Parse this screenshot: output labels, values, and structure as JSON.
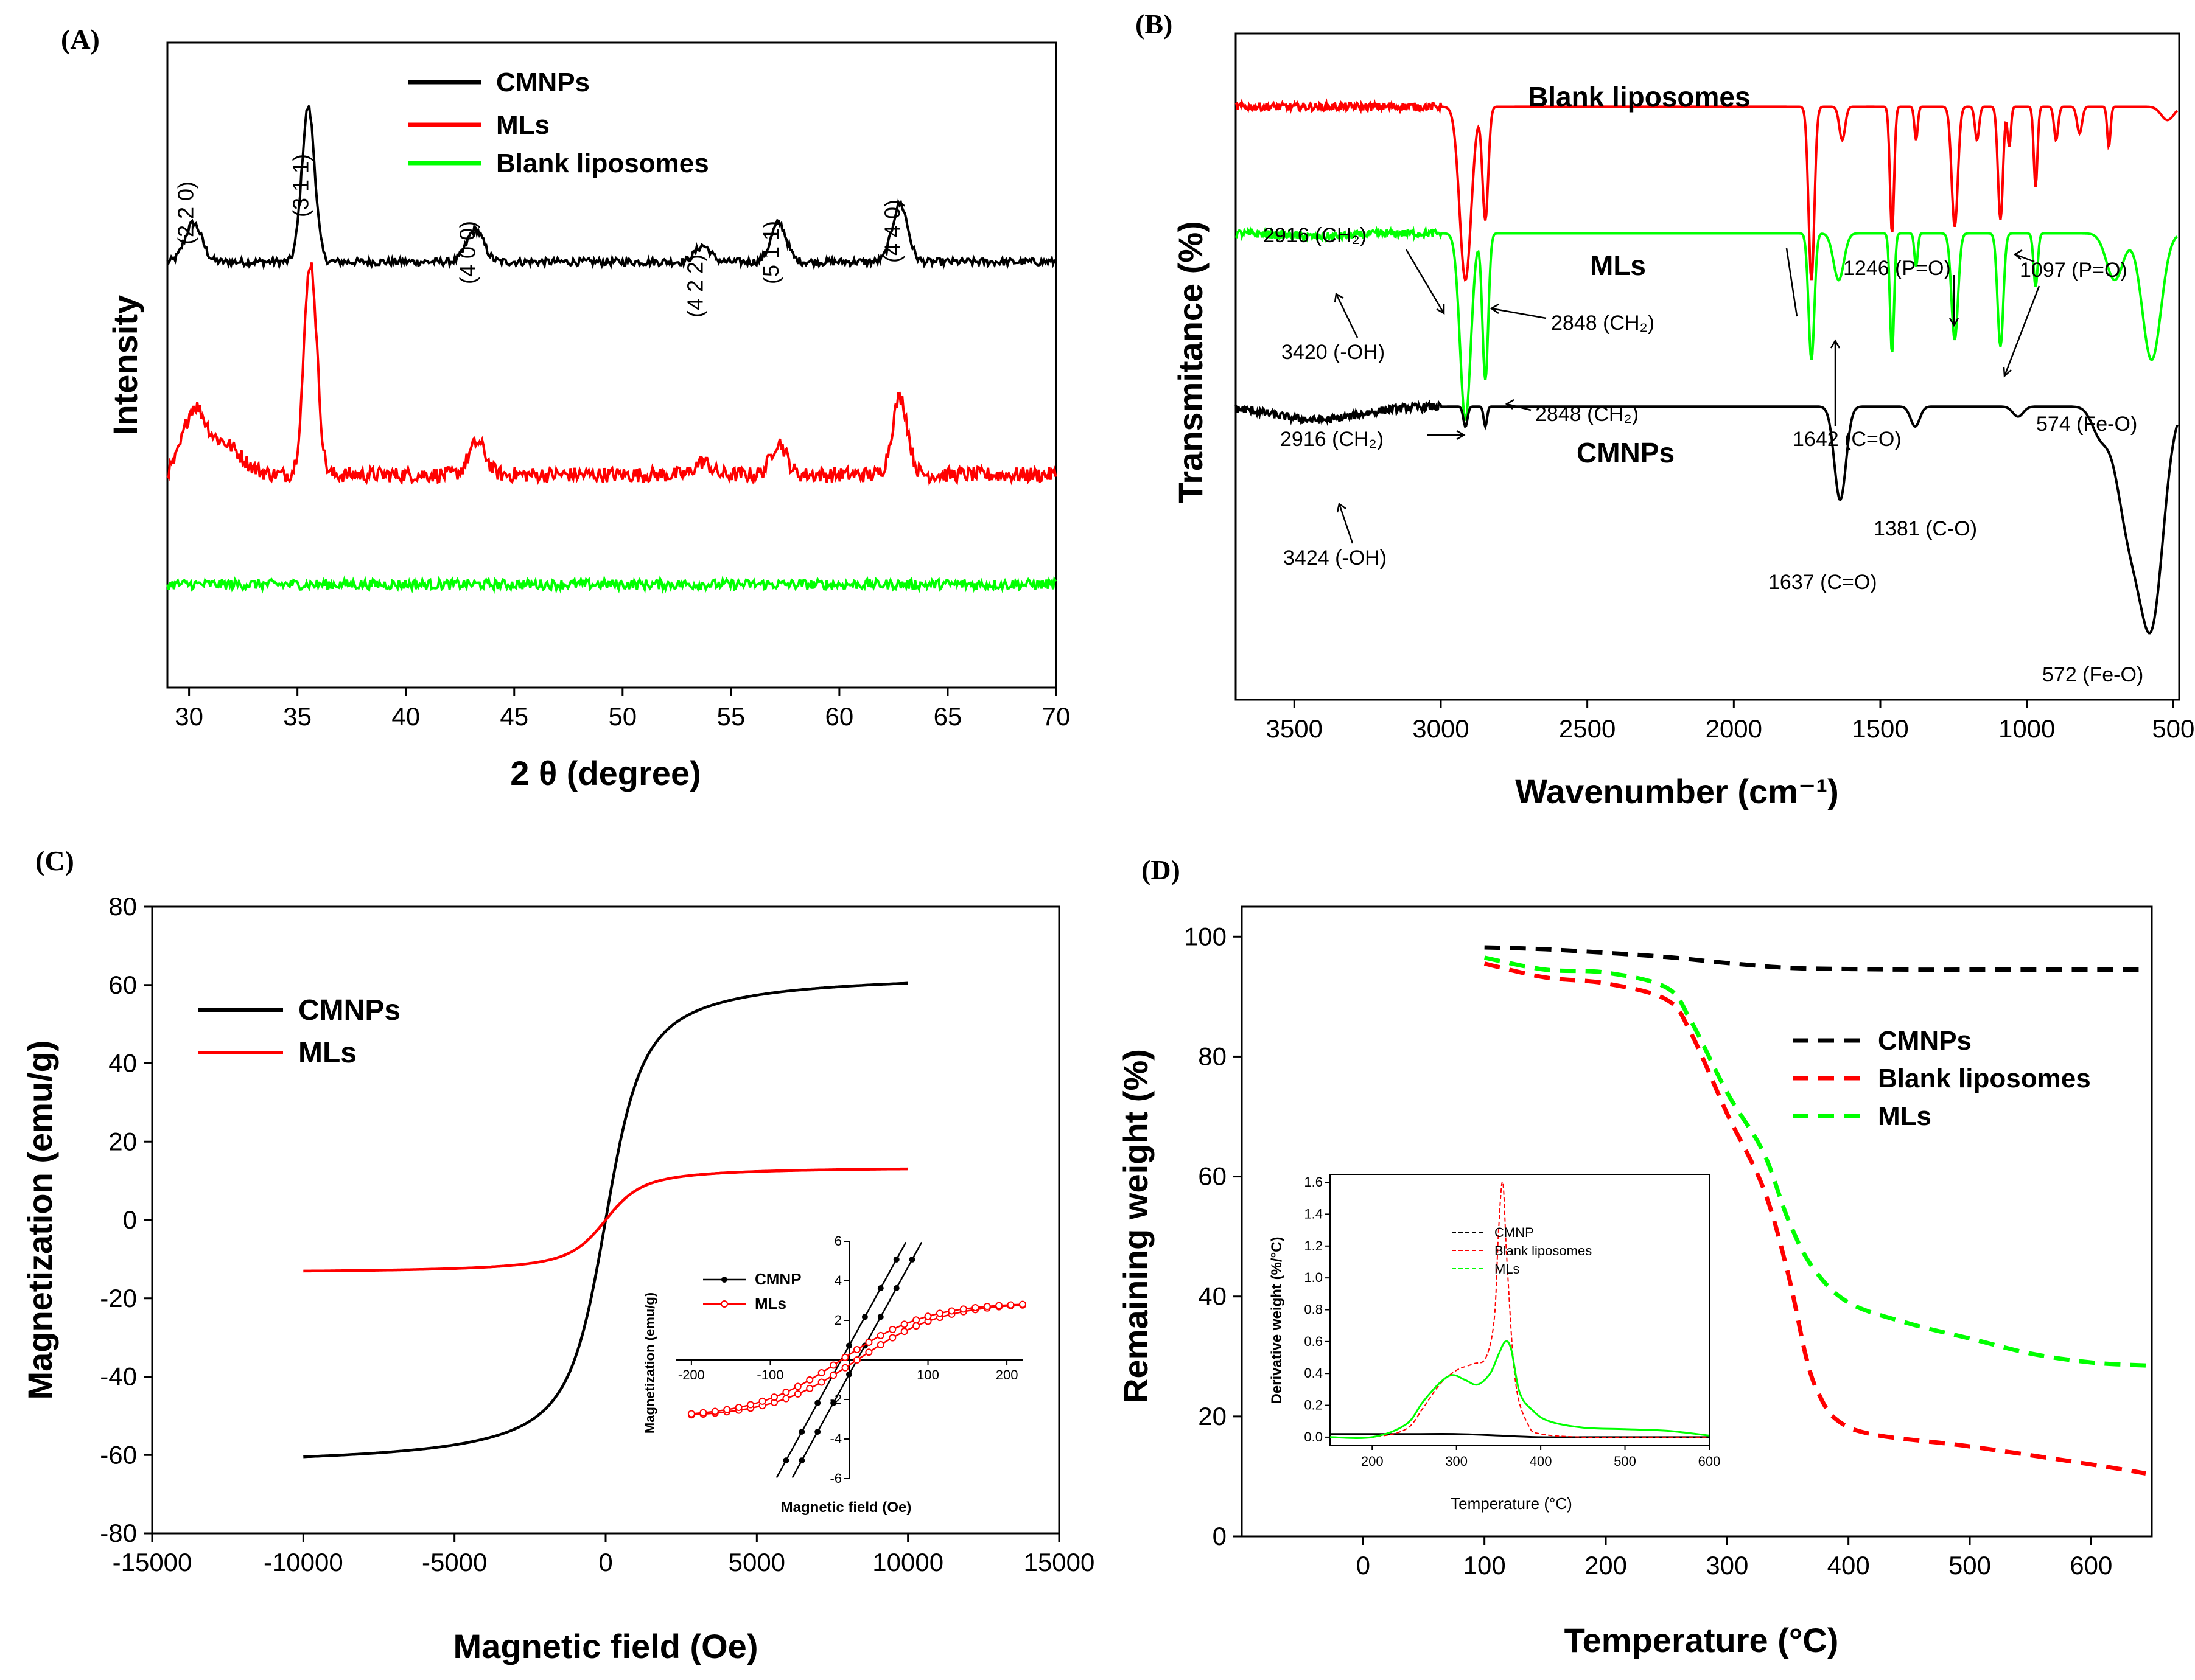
{
  "figure": {
    "description_free": true
  },
  "chart_data": [
    {
      "panel": "(A)",
      "type": "line",
      "title": "",
      "xlabel": "2 θ (degree)",
      "ylabel": "Intensity",
      "xlim": [
        29,
        70
      ],
      "xticks": [
        "30",
        "35",
        "40",
        "45",
        "50",
        "55",
        "60",
        "65",
        "70"
      ],
      "legend": [
        "CMNPs",
        "MLs",
        "Blank liposomes"
      ],
      "peak_labels": [
        {
          "text": "(2 2 0)",
          "x": 30.2
        },
        {
          "text": "(3 1 1)",
          "x": 35.5
        },
        {
          "text": "(4 0 0)",
          "x": 43.2
        },
        {
          "text": "(4 2 2)",
          "x": 53.7
        },
        {
          "text": "(5 1 1)",
          "x": 57.2
        },
        {
          "text": "(4 4 0)",
          "x": 62.8
        }
      ],
      "series": [
        {
          "name": "CMNPs",
          "color": "#000000",
          "baseline": 0.66,
          "noise": 0.006,
          "peaks": [
            [
              30.2,
              0.06,
              0.55
            ],
            [
              35.5,
              0.24,
              0.42
            ],
            [
              43.2,
              0.05,
              0.55
            ],
            [
              53.7,
              0.025,
              0.5
            ],
            [
              57.2,
              0.06,
              0.5
            ],
            [
              62.8,
              0.09,
              0.5
            ]
          ]
        },
        {
          "name": "MLs",
          "color": "#ff0000",
          "baseline": 0.33,
          "noise": 0.012,
          "peaks": [
            [
              30.2,
              0.09,
              0.7
            ],
            [
              31.5,
              0.05,
              1.2
            ],
            [
              35.6,
              0.33,
              0.42
            ],
            [
              43.3,
              0.05,
              0.55
            ],
            [
              53.7,
              0.02,
              0.5
            ],
            [
              57.2,
              0.05,
              0.5
            ],
            [
              62.8,
              0.12,
              0.5
            ]
          ]
        },
        {
          "name": "Blank liposomes",
          "color": "#00ff00",
          "baseline": 0.16,
          "noise": 0.008,
          "peaks": []
        }
      ]
    },
    {
      "panel": "(B)",
      "type": "line",
      "title": "",
      "xlabel": "Wavenumber (cm⁻¹)",
      "ylabel": "Transmitance (%)",
      "xlim": [
        3700,
        480
      ],
      "xticks": [
        "3500",
        "3000",
        "2500",
        "2000",
        "1500",
        "1000",
        "500"
      ],
      "series_labels": [
        "Blank liposomes",
        "MLs",
        "CMNPs"
      ],
      "annotations": [
        "2916 (CH₂)",
        "2848 (CH₂)",
        "3420 (-OH)",
        "2848 (CH₂)",
        "2916 (CH₂)",
        "1246 (P=O)",
        "1097 (P=O)",
        "1642 (C=O)",
        "574 (Fe-O)",
        "3424 (-OH)",
        "1637 (C=O)",
        "1381 (C-O)",
        "572 (Fe-O)"
      ],
      "series": [
        {
          "name": "Blank liposomes",
          "color": "#ff0000",
          "baseline": 0.89,
          "bands": [
            [
              2916,
              0.26,
              28
            ],
            [
              2848,
              0.17,
              14
            ],
            [
              1735,
              0.26,
              14
            ],
            [
              1630,
              0.05,
              14
            ],
            [
              1460,
              0.19,
              10
            ],
            [
              1378,
              0.05,
              8
            ],
            [
              1246,
              0.18,
              15
            ],
            [
              1170,
              0.05,
              10
            ],
            [
              1090,
              0.17,
              12
            ],
            [
              1060,
              0.06,
              8
            ],
            [
              970,
              0.12,
              9
            ],
            [
              900,
              0.05,
              10
            ],
            [
              820,
              0.04,
              12
            ],
            [
              720,
              0.06,
              8
            ],
            [
              520,
              0.02,
              30
            ]
          ]
        },
        {
          "name": "MLs",
          "color": "#00ff00",
          "baseline": 0.7,
          "bands": [
            [
              3420,
              0.005,
              150
            ],
            [
              2916,
              0.28,
              26
            ],
            [
              2848,
              0.22,
              14
            ],
            [
              1735,
              0.19,
              14
            ],
            [
              1642,
              0.07,
              25
            ],
            [
              1460,
              0.18,
              10
            ],
            [
              1378,
              0.05,
              8
            ],
            [
              1246,
              0.16,
              16
            ],
            [
              1090,
              0.17,
              14
            ],
            [
              970,
              0.08,
              10
            ],
            [
              574,
              0.19,
              45
            ],
            [
              700,
              0.07,
              40
            ]
          ]
        },
        {
          "name": "CMNPs",
          "color": "#000000",
          "baseline": 0.44,
          "bands": [
            [
              3424,
              0.02,
              200
            ],
            [
              2916,
              0.03,
              10
            ],
            [
              2848,
              0.03,
              8
            ],
            [
              1637,
              0.14,
              28
            ],
            [
              1381,
              0.03,
              22
            ],
            [
              1030,
              0.015,
              25
            ],
            [
              572,
              0.3,
              55
            ],
            [
              650,
              0.18,
              60
            ],
            [
              750,
              0.04,
              40
            ]
          ]
        }
      ]
    },
    {
      "panel": "(C)",
      "type": "line",
      "title": "",
      "xlabel": "Magnetic field (Oe)",
      "ylabel": "Magnetization (emu/g)",
      "xlim": [
        -15000,
        15000
      ],
      "ylim": [
        -80,
        80
      ],
      "xticks": [
        "-15000",
        "-10000",
        "-5000",
        "0",
        "5000",
        "10000",
        "15000"
      ],
      "yticks": [
        "80",
        "60",
        "40",
        "20",
        "0",
        "-20",
        "-40",
        "-60",
        "-80"
      ],
      "legend": [
        "CMNPs",
        "MLs"
      ],
      "series": [
        {
          "name": "CMNPs",
          "color": "#000000",
          "Ms": 63.5,
          "a": 480,
          "xrange": [
            -10000,
            10000
          ]
        },
        {
          "name": "MLs",
          "color": "#ff0000",
          "Ms": 13.7,
          "a": 480,
          "xrange": [
            -10000,
            10000
          ]
        }
      ],
      "inset": {
        "xlabel": "Magnetic field (Oe)",
        "ylabel": "Magnetization (emu/g)",
        "xlim": [
          -220,
          220
        ],
        "ylim": [
          -6,
          6
        ],
        "xticks": [
          "-200",
          "-100",
          "100",
          "200"
        ],
        "yticks": [
          "6",
          "4",
          "2",
          "-2",
          "-4",
          "-6"
        ],
        "legend": [
          "CMNP",
          "MLs"
        ],
        "series": [
          {
            "name": "CMNP",
            "color": "#000000",
            "slope": 0.0726,
            "coercivity": 10,
            "marker": "filled-circle"
          },
          {
            "name": "MLs",
            "color": "#ff0000",
            "Ms": 2.9,
            "a": 110,
            "coercivity": 10,
            "marker": "open-circle"
          }
        ]
      }
    },
    {
      "panel": "(D)",
      "type": "line",
      "title": "",
      "xlabel": "Temperature (°C)",
      "ylabel": "Remaining weight (%)",
      "xlim": [
        -100,
        650
      ],
      "ylim": [
        0,
        105
      ],
      "xticks": [
        "0",
        "100",
        "200",
        "300",
        "400",
        "500",
        "600"
      ],
      "yticks": [
        "100",
        "80",
        "60",
        "40",
        "20",
        "0"
      ],
      "legend": [
        "CMNPs",
        "Blank liposomes",
        "MLs"
      ],
      "series": [
        {
          "name": "CMNPs",
          "color": "#000000",
          "x": [
            100,
            150,
            200,
            250,
            300,
            350,
            400,
            450,
            500,
            550,
            600,
            645
          ],
          "y": [
            98.2,
            97.9,
            97.3,
            96.6,
            95.6,
            94.8,
            94.6,
            94.5,
            94.5,
            94.5,
            94.5,
            94.5
          ]
        },
        {
          "name": "Blank liposomes",
          "color": "#ff0000",
          "x": [
            100,
            150,
            200,
            250,
            270,
            300,
            330,
            350,
            365,
            375,
            390,
            420,
            500,
            600,
            645
          ],
          "y": [
            95.5,
            93.2,
            92.2,
            89.5,
            84,
            70.5,
            58,
            44,
            30,
            24,
            19.5,
            17,
            15,
            12,
            10.5
          ]
        },
        {
          "name": "MLs",
          "color": "#00ff00",
          "x": [
            100,
            150,
            200,
            250,
            270,
            300,
            330,
            350,
            370,
            400,
            450,
            500,
            550,
            600,
            645
          ],
          "y": [
            96.5,
            94.5,
            94,
            91.5,
            86,
            74,
            64,
            53,
            45,
            39,
            35.5,
            33,
            30.5,
            29,
            28.5
          ]
        }
      ],
      "inset": {
        "xlabel": "Temperature (°C)",
        "ylabel": "Derivative weight (%/°C)",
        "xlim": [
          150,
          600
        ],
        "ylim": [
          -0.05,
          1.65
        ],
        "xticks": [
          "200",
          "300",
          "400",
          "500",
          "600"
        ],
        "yticks": [
          "0.0",
          "0.2",
          "0.4",
          "0.6",
          "0.8",
          "1.0",
          "1.2",
          "1.4",
          "1.6"
        ],
        "legend": [
          "CMNP",
          "Blank liposomes",
          "MLs"
        ],
        "series": [
          {
            "name": "CMNP",
            "color": "#000000",
            "x": [
              150,
              200,
              250,
              300,
              350,
              400,
              450,
              500,
              550,
              600
            ],
            "y": [
              0.02,
              0.02,
              0.02,
              0.02,
              0.01,
              0.0,
              0.0,
              0.0,
              0.0,
              0.0
            ]
          },
          {
            "name": "Blank liposomes",
            "color": "#ff0000",
            "x": [
              150,
              200,
              240,
              260,
              280,
              300,
              320,
              335,
              345,
              350,
              355,
              360,
              370,
              385,
              400,
              450,
              500,
              600
            ],
            "y": [
              0.0,
              0.0,
              0.05,
              0.18,
              0.33,
              0.42,
              0.46,
              0.5,
              0.75,
              1.3,
              1.6,
              1.1,
              0.35,
              0.08,
              0.02,
              0.0,
              0.0,
              0.0
            ]
          },
          {
            "name": "MLs",
            "color": "#00ff00",
            "x": [
              150,
              200,
              240,
              260,
              280,
              295,
              310,
              325,
              340,
              350,
              358,
              365,
              375,
              390,
              410,
              450,
              500,
              550,
              600
            ],
            "y": [
              0.0,
              0.0,
              0.08,
              0.22,
              0.34,
              0.39,
              0.36,
              0.33,
              0.4,
              0.52,
              0.6,
              0.55,
              0.28,
              0.17,
              0.1,
              0.06,
              0.05,
              0.04,
              0.01
            ]
          }
        ]
      }
    }
  ]
}
